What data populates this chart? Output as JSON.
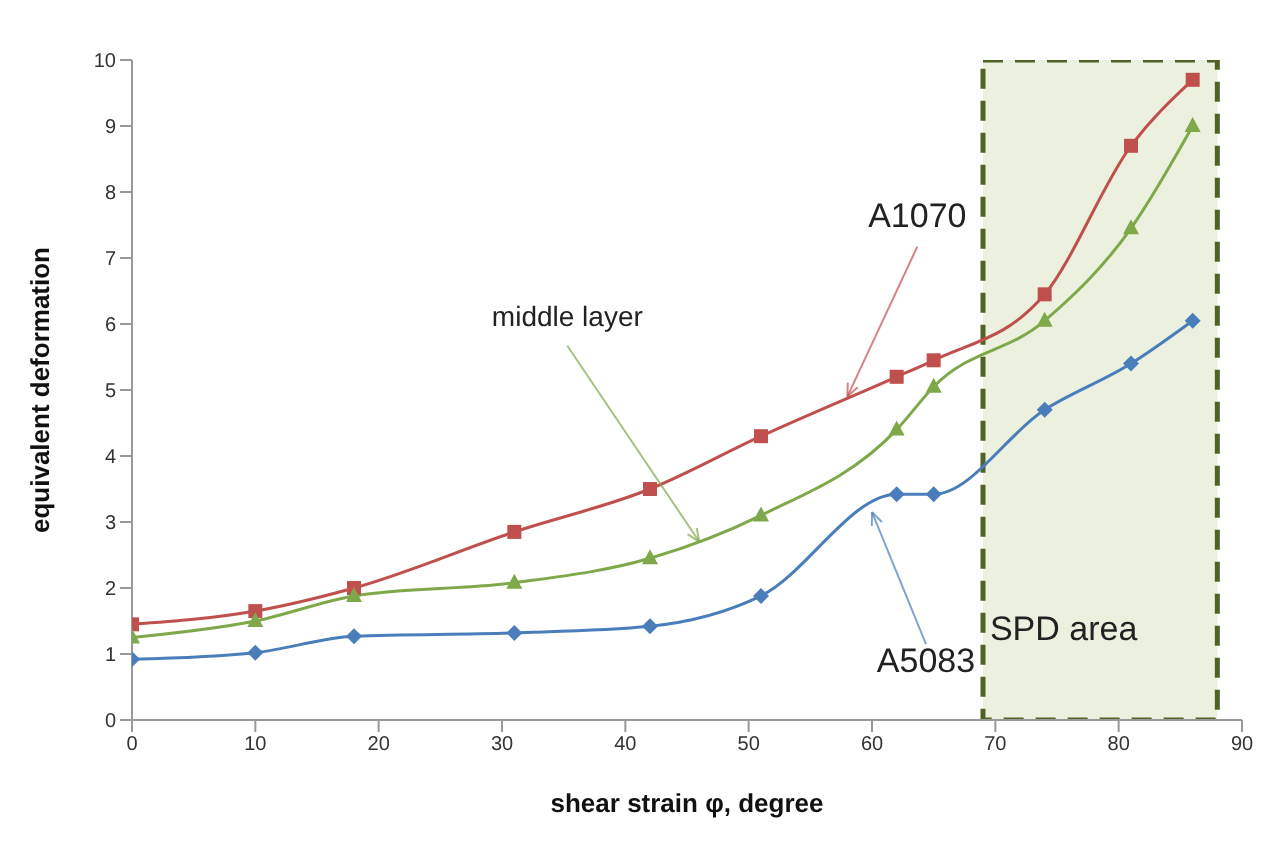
{
  "chart_data": {
    "type": "line",
    "xlabel": "shear strain φ, degree",
    "ylabel": "equivalent deformation",
    "x": [
      0,
      10,
      18,
      31,
      42,
      51,
      62,
      65,
      74,
      81,
      86
    ],
    "series": [
      {
        "color": "#c0504d",
        "marker": "square",
        "values": [
          1.45,
          1.65,
          2.0,
          2.85,
          3.5,
          4.3,
          5.2,
          5.45,
          6.45,
          8.7,
          9.7
        ]
      },
      {
        "color": "#7fa84a",
        "marker": "triangle",
        "values": [
          1.25,
          1.5,
          1.88,
          2.08,
          2.45,
          3.1,
          4.4,
          5.05,
          6.05,
          7.45,
          9.0
        ]
      },
      {
        "color": "#4a7ebb",
        "marker": "diamond",
        "values": [
          0.92,
          1.02,
          1.27,
          1.32,
          1.42,
          1.88,
          3.42,
          3.42,
          4.7,
          5.4,
          6.05
        ]
      }
    ],
    "xlim": [
      0,
      90
    ],
    "xticks": [
      0,
      10,
      20,
      30,
      40,
      50,
      60,
      70,
      80,
      90
    ],
    "ylim": [
      0,
      10
    ],
    "yticks": [
      0,
      1,
      2,
      3,
      4,
      5,
      6,
      7,
      8,
      9,
      10
    ],
    "grid": false,
    "legend": false,
    "annotations": [
      {
        "text": "A1070",
        "x": 58,
        "y": 4.9
      },
      {
        "text": "middle layer",
        "x": 46,
        "y": 2.7
      },
      {
        "text": "A5083",
        "x": 60,
        "y": 3.15
      }
    ],
    "bands": [
      {
        "axis": "x",
        "from": 69,
        "to": 88,
        "label": "SPD area",
        "color": "#ebf1de"
      }
    ]
  }
}
